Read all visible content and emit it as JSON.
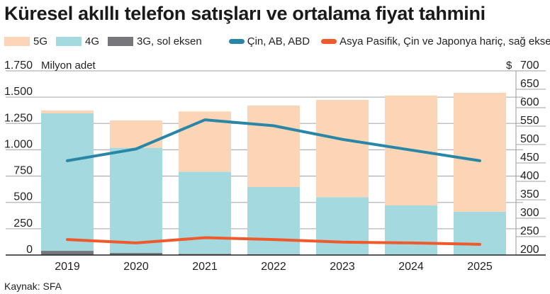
{
  "chart_data": {
    "type": "bar",
    "title": "Küresel akıllı telefon satışları ve ortalama fiyat tahmini",
    "categories": [
      "2019",
      "2020",
      "2021",
      "2022",
      "2023",
      "2024",
      "2025"
    ],
    "left_axis": {
      "label": "Milyon adet",
      "range": [
        0,
        1750
      ],
      "ticks": [
        "0",
        "250",
        "500",
        "750",
        "1.000",
        "1.250",
        "1.500",
        "1.750"
      ],
      "tick_values": [
        0,
        250,
        500,
        750,
        1000,
        1250,
        1500,
        1750
      ]
    },
    "right_axis": {
      "label": "$",
      "range": [
        200,
        700
      ],
      "ticks": [
        "200",
        "250",
        "300",
        "350",
        "400",
        "450",
        "500",
        "550",
        "600",
        "650",
        "700"
      ],
      "tick_values": [
        200,
        250,
        300,
        350,
        400,
        450,
        500,
        550,
        600,
        650,
        700
      ]
    },
    "stacked_series": [
      {
        "name": "3G, sol eksen",
        "color": "#77777b",
        "values": [
          40,
          20,
          11,
          8,
          3,
          2,
          1
        ]
      },
      {
        "name": "4G",
        "color": "#a3d9df",
        "values": [
          1306,
          999,
          781,
          638,
          547,
          469,
          410
        ]
      },
      {
        "name": "5G",
        "color": "#fbd5b5",
        "values": [
          27,
          260,
          572,
          774,
          924,
          1044,
          1131
        ]
      }
    ],
    "line_series": [
      {
        "name": "Çin, AB, ABD",
        "color": "#2a86a6",
        "values": [
          456,
          488,
          567,
          551,
          514,
          485,
          456
        ]
      },
      {
        "name": "Asya Pasifik, Çin ve Japonya hariç, sağ eksen",
        "color": "#ee5a2c",
        "values": [
          242,
          233,
          247,
          242,
          235,
          233,
          229
        ]
      }
    ],
    "grid": true,
    "legend_position": "top"
  },
  "source": "Kaynak: SFA"
}
